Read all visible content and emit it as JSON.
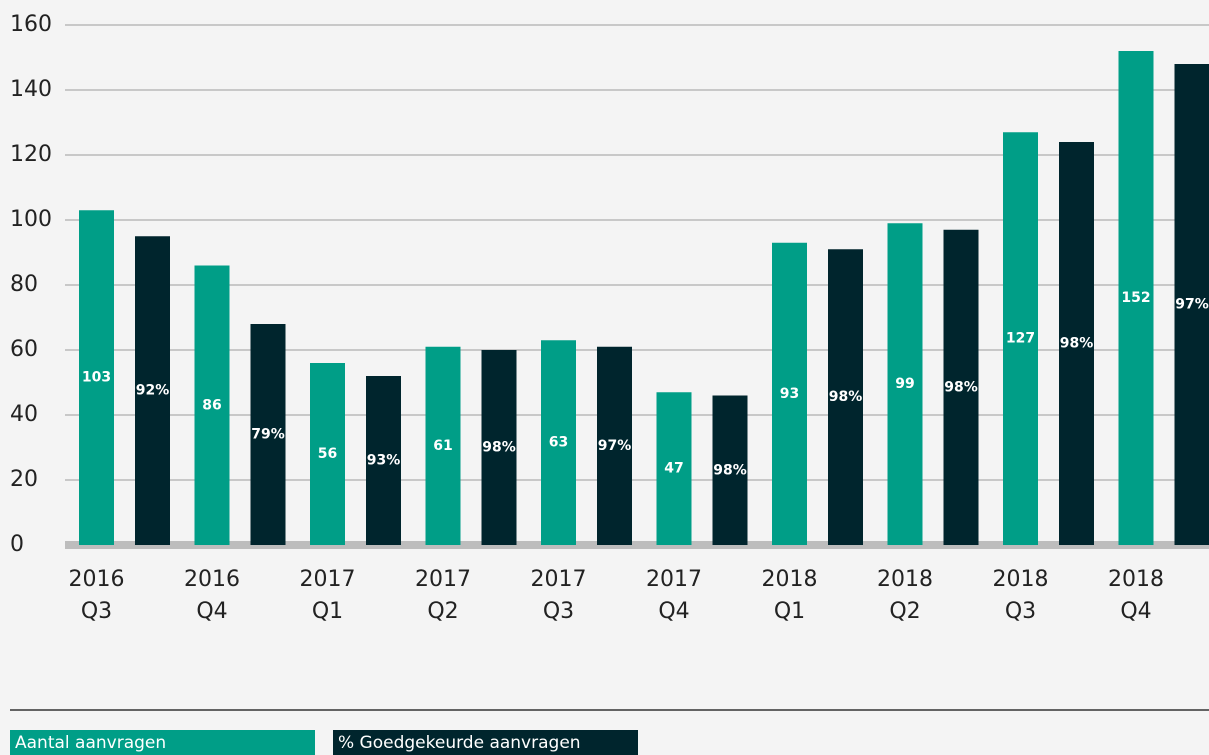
{
  "chart_data": {
    "type": "bar",
    "categories": [
      [
        "2016",
        "Q3"
      ],
      [
        "2016",
        "Q4"
      ],
      [
        "2017",
        "Q1"
      ],
      [
        "2017",
        "Q2"
      ],
      [
        "2017",
        "Q3"
      ],
      [
        "2017",
        "Q4"
      ],
      [
        "2018",
        "Q1"
      ],
      [
        "2018",
        "Q2"
      ],
      [
        "2018",
        "Q3"
      ],
      [
        "2018",
        "Q4"
      ]
    ],
    "series": [
      {
        "name": "Aantal aanvragen",
        "color": "#009e87",
        "values": [
          103,
          86,
          56,
          61,
          63,
          47,
          93,
          99,
          127,
          152
        ]
      },
      {
        "name": "% Goedgekeurde aanvragen",
        "color": "#00252d",
        "values": [
          95,
          68,
          52,
          60,
          61,
          46,
          91,
          97,
          124,
          148
        ],
        "value_labels": [
          "92%",
          "79%",
          "93%",
          "98%",
          "97%",
          "98%",
          "98%",
          "98%",
          "98%",
          "97%"
        ]
      }
    ],
    "ylim": [
      0,
      160
    ],
    "yticks": [
      0,
      20,
      40,
      60,
      80,
      100,
      120,
      140,
      160
    ],
    "grid": true,
    "legend": "bottom"
  }
}
